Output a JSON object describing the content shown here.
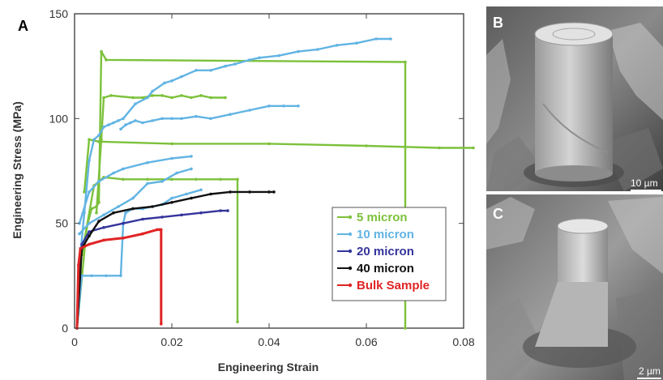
{
  "panel_labels": {
    "a": "A",
    "b": "B",
    "c": "C"
  },
  "scale_bars": {
    "b": "10 µm",
    "c": "2 µm"
  },
  "colors": {
    "5 micron": "#7cc13b",
    "10 micron": "#62b4e3",
    "20 micron": "#34349c",
    "40 micron": "#111111",
    "Bulk Sample": "#e02424"
  },
  "chart_data": {
    "type": "line",
    "xlabel": "Engineering Strain",
    "ylabel": "Engineering Stress (MPa)",
    "xlim": [
      0,
      0.08
    ],
    "ylim": [
      0,
      150
    ],
    "xticks": [
      "0",
      "0.02",
      "0.04",
      "0.06",
      "0.08"
    ],
    "xtick_values": [
      0,
      0.02,
      0.04,
      0.06,
      0.08
    ],
    "yticks": [
      "0",
      "50",
      "100",
      "150"
    ],
    "ytick_values": [
      0,
      50,
      100,
      150
    ],
    "legend_position": "lower-right",
    "series": [
      {
        "name": "5 micron",
        "curves": [
          {
            "x": [
              0.0005,
              0.0025,
              0.0035,
              0.0045,
              0.005,
              0.0055,
              0.0065,
              0.068,
              0.068
            ],
            "y": [
              0,
              48,
              57,
              58,
              60,
              132,
              128,
              127,
              0
            ]
          },
          {
            "x": [
              0.0045,
              0.0055,
              0.006,
              0.0075,
              0.012,
              0.014,
              0.016,
              0.018,
              0.02,
              0.022,
              0.024,
              0.026,
              0.028,
              0.031
            ],
            "y": [
              55,
              90,
              110,
              111,
              110,
              110,
              111,
              111,
              110,
              111,
              110,
              111,
              110,
              110
            ]
          },
          {
            "x": [
              0.002,
              0.003,
              0.005,
              0.02,
              0.04,
              0.06,
              0.075,
              0.082
            ],
            "y": [
              65,
              90,
              89,
              88,
              88,
              87,
              86,
              86
            ]
          },
          {
            "x": [
              0.0015,
              0.004,
              0.006,
              0.01,
              0.015,
              0.02,
              0.025,
              0.03,
              0.0335,
              0.0335
            ],
            "y": [
              35,
              68,
              72,
              71,
              71,
              71,
              71,
              71,
              71,
              3
            ]
          }
        ]
      },
      {
        "name": "10 micron",
        "curves": [
          {
            "x": [
              0.0005,
              0.001,
              0.002,
              0.003,
              0.004,
              0.005,
              0.006,
              0.007,
              0.008,
              0.009,
              0.01,
              0.0125,
              0.015,
              0.016,
              0.0185,
              0.02,
              0.022,
              0.025,
              0.028,
              0.031,
              0.033,
              0.036,
              0.038,
              0.042,
              0.046,
              0.05,
              0.054,
              0.058,
              0.062,
              0.065
            ],
            "y": [
              0,
              30,
              55,
              80,
              90,
              92,
              96,
              97,
              98,
              99,
              100,
              107,
              110,
              113,
              117,
              118,
              120,
              123,
              123,
              125,
              126,
              128,
              129,
              130,
              132,
              133,
              135,
              136,
              138,
              138
            ]
          },
          {
            "x": [
              0.0095,
              0.0105,
              0.0115,
              0.0125,
              0.014,
              0.016,
              0.018,
              0.02,
              0.022,
              0.025,
              0.028,
              0.032,
              0.036,
              0.04,
              0.043,
              0.046
            ],
            "y": [
              95,
              97,
              98,
              99,
              98,
              99,
              100,
              100,
              100,
              101,
              100,
              102,
              104,
              106,
              106,
              106
            ]
          },
          {
            "x": [
              0.001,
              0.003,
              0.005,
              0.008,
              0.01,
              0.015,
              0.02,
              0.024
            ],
            "y": [
              50,
              65,
              70,
              74,
              76,
              79,
              81,
              82
            ]
          },
          {
            "x": [
              0.0005,
              0.0015,
              0.0035,
              0.0065,
              0.0095,
              0.01,
              0.0105,
              0.012,
              0.014,
              0.016,
              0.018,
              0.02,
              0.023,
              0.026
            ],
            "y": [
              0,
              25,
              25,
              25,
              25,
              50,
              55,
              57,
              57,
              58,
              59,
              62,
              64,
              66
            ]
          },
          {
            "x": [
              0.001,
              0.003,
              0.006,
              0.009,
              0.012,
              0.015,
              0.018,
              0.021,
              0.024
            ],
            "y": [
              45,
              50,
              54,
              58,
              62,
              69,
              70,
              74,
              76
            ]
          }
        ]
      },
      {
        "name": "20 micron",
        "curves": [
          {
            "x": [
              0.0005,
              0.0015,
              0.003,
              0.006,
              0.01,
              0.014,
              0.018,
              0.022,
              0.026,
              0.03,
              0.0315
            ],
            "y": [
              0,
              40,
              46,
              48,
              50,
              52,
              53,
              54,
              55,
              56,
              56
            ]
          }
        ]
      },
      {
        "name": "40 micron",
        "curves": [
          {
            "x": [
              0.0005,
              0.0015,
              0.003,
              0.005,
              0.008,
              0.012,
              0.016,
              0.02,
              0.024,
              0.028,
              0.032,
              0.036,
              0.04,
              0.041
            ],
            "y": [
              0,
              38,
              44,
              51,
              55,
              57,
              58,
              60,
              62,
              64,
              65,
              65,
              65,
              65
            ]
          }
        ]
      },
      {
        "name": "Bulk Sample",
        "curves": [
          {
            "x": [
              0.0005,
              0.0008,
              0.0012,
              0.003,
              0.006,
              0.01,
              0.014,
              0.017,
              0.0175,
              0.0178,
              0.0178
            ],
            "y": [
              0,
              30,
              38,
              40,
              42,
              43,
              45,
              47,
              47,
              47,
              2
            ]
          }
        ]
      }
    ]
  }
}
